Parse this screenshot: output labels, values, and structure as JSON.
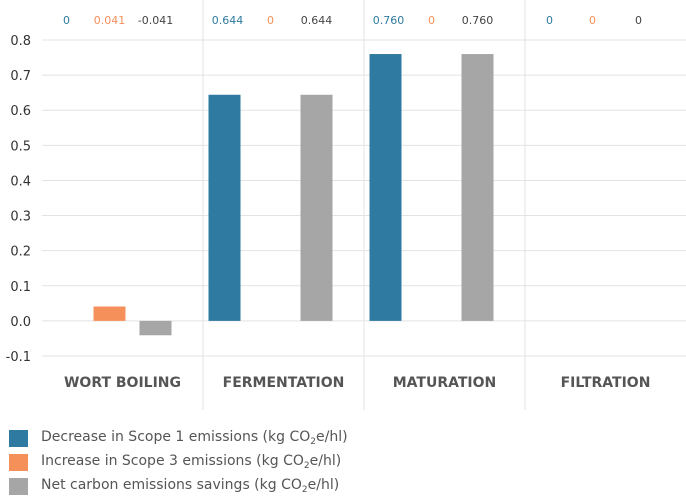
{
  "chart_data": {
    "type": "bar",
    "categories": [
      "WORT BOILING",
      "FERMENTATION",
      "MATURATION",
      "FILTRATION"
    ],
    "series": [
      {
        "name": "Decrease in Scope 1 emissions (kg CO2e/hl)",
        "values": [
          0,
          0.644,
          0.76,
          0
        ],
        "labels": [
          "0",
          "0.644",
          "0.760",
          "0"
        ],
        "color": "#2e7aa0"
      },
      {
        "name": "Increase in Scope 3 emissions (kg CO2e/hl)",
        "values": [
          0.041,
          0,
          0,
          0
        ],
        "labels": [
          "0.041",
          "0",
          "0",
          "0"
        ],
        "color": "#f5905a"
      },
      {
        "name": "Net carbon emissions savings (kg CO2e/hl)",
        "values": [
          -0.041,
          0.644,
          0.76,
          0
        ],
        "labels": [
          "-0.041",
          "0.644",
          "0.760",
          "0"
        ],
        "color": "#a6a6a6"
      }
    ],
    "ylim": [
      -0.1,
      0.8
    ],
    "yticks": [
      "-0.1",
      "0.0",
      "0.1",
      "0.2",
      "0.3",
      "0.4",
      "0.5",
      "0.6",
      "0.7",
      "0.8"
    ],
    "grid": true,
    "legend_position": "bottom-left"
  },
  "legend": [
    {
      "pre": "Decrease in Scope 1 emissions (kg CO",
      "sub": "2",
      "post": "e/hl)"
    },
    {
      "pre": "Increase in Scope 3 emissions (kg CO",
      "sub": "2",
      "post": "e/hl)"
    },
    {
      "pre": "Net carbon emissions savings (kg CO",
      "sub": "2",
      "post": "e/hl)"
    }
  ]
}
